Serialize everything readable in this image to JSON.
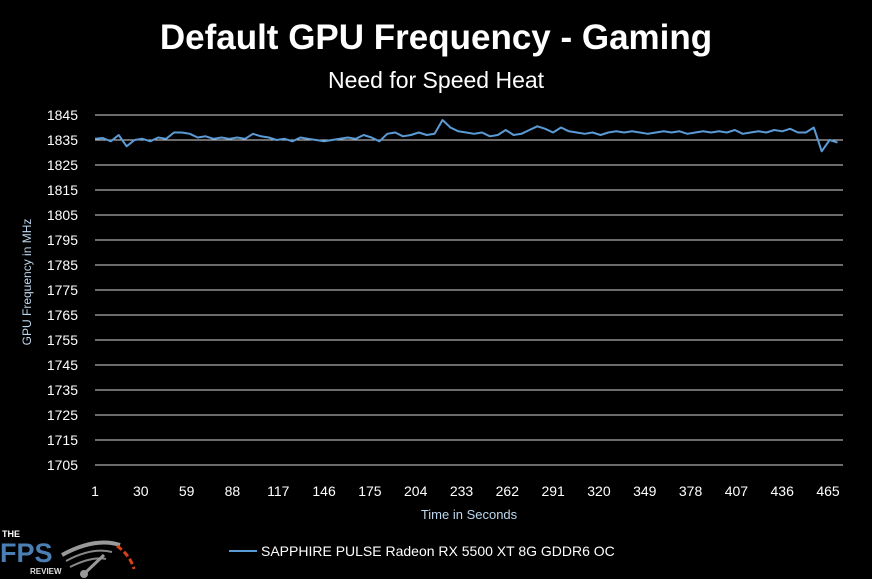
{
  "chart_data": {
    "type": "line",
    "title": "Default GPU Frequency - Gaming",
    "subtitle": "Need for Speed Heat",
    "xlabel": "Time in Seconds",
    "ylabel": "GPU Frequency in MHz",
    "ylim": [
      1705,
      1845
    ],
    "xlim": [
      1,
      474
    ],
    "yticks": [
      1845,
      1835,
      1825,
      1815,
      1805,
      1795,
      1785,
      1775,
      1765,
      1755,
      1745,
      1735,
      1725,
      1715,
      1705
    ],
    "xticks": [
      1,
      30,
      59,
      88,
      117,
      146,
      175,
      204,
      233,
      262,
      291,
      320,
      349,
      378,
      407,
      436,
      465
    ],
    "grid": true,
    "legend_position": "bottom",
    "series": [
      {
        "name": "SAPPHIRE PULSE Radeon RX 5500 XT 8G GDDR6 OC",
        "color": "#5b9bd5",
        "x_start": 1,
        "x_step": 5,
        "values": [
          1835.5,
          1835.8,
          1834.5,
          1837,
          1832.5,
          1835,
          1835.5,
          1834.5,
          1836,
          1835.5,
          1838,
          1838,
          1837.5,
          1836,
          1836.5,
          1835.5,
          1836,
          1835.5,
          1836,
          1835.5,
          1837.5,
          1836.5,
          1836,
          1835,
          1835.5,
          1834.5,
          1836,
          1835.5,
          1835,
          1834.5,
          1835,
          1835.5,
          1836,
          1835.5,
          1837,
          1836,
          1834.5,
          1837.5,
          1838,
          1836.5,
          1837,
          1838,
          1837,
          1837.5,
          1843,
          1840,
          1838.5,
          1838,
          1837.5,
          1838,
          1836.5,
          1837,
          1839,
          1837,
          1837.5,
          1839,
          1840.5,
          1839.5,
          1838,
          1840,
          1838.5,
          1838,
          1837.5,
          1838,
          1837,
          1838,
          1838.5,
          1838,
          1838.5,
          1838,
          1837.5,
          1838,
          1838.5,
          1838,
          1838.5,
          1837.5,
          1838,
          1838.5,
          1838,
          1838.5,
          1838,
          1839,
          1837.5,
          1838,
          1838.5,
          1838,
          1839,
          1838.5,
          1839.5,
          1838,
          1838,
          1840,
          1830.5,
          1835,
          1834
        ]
      }
    ]
  },
  "logo": {
    "text": "THE FPS REVIEW"
  }
}
